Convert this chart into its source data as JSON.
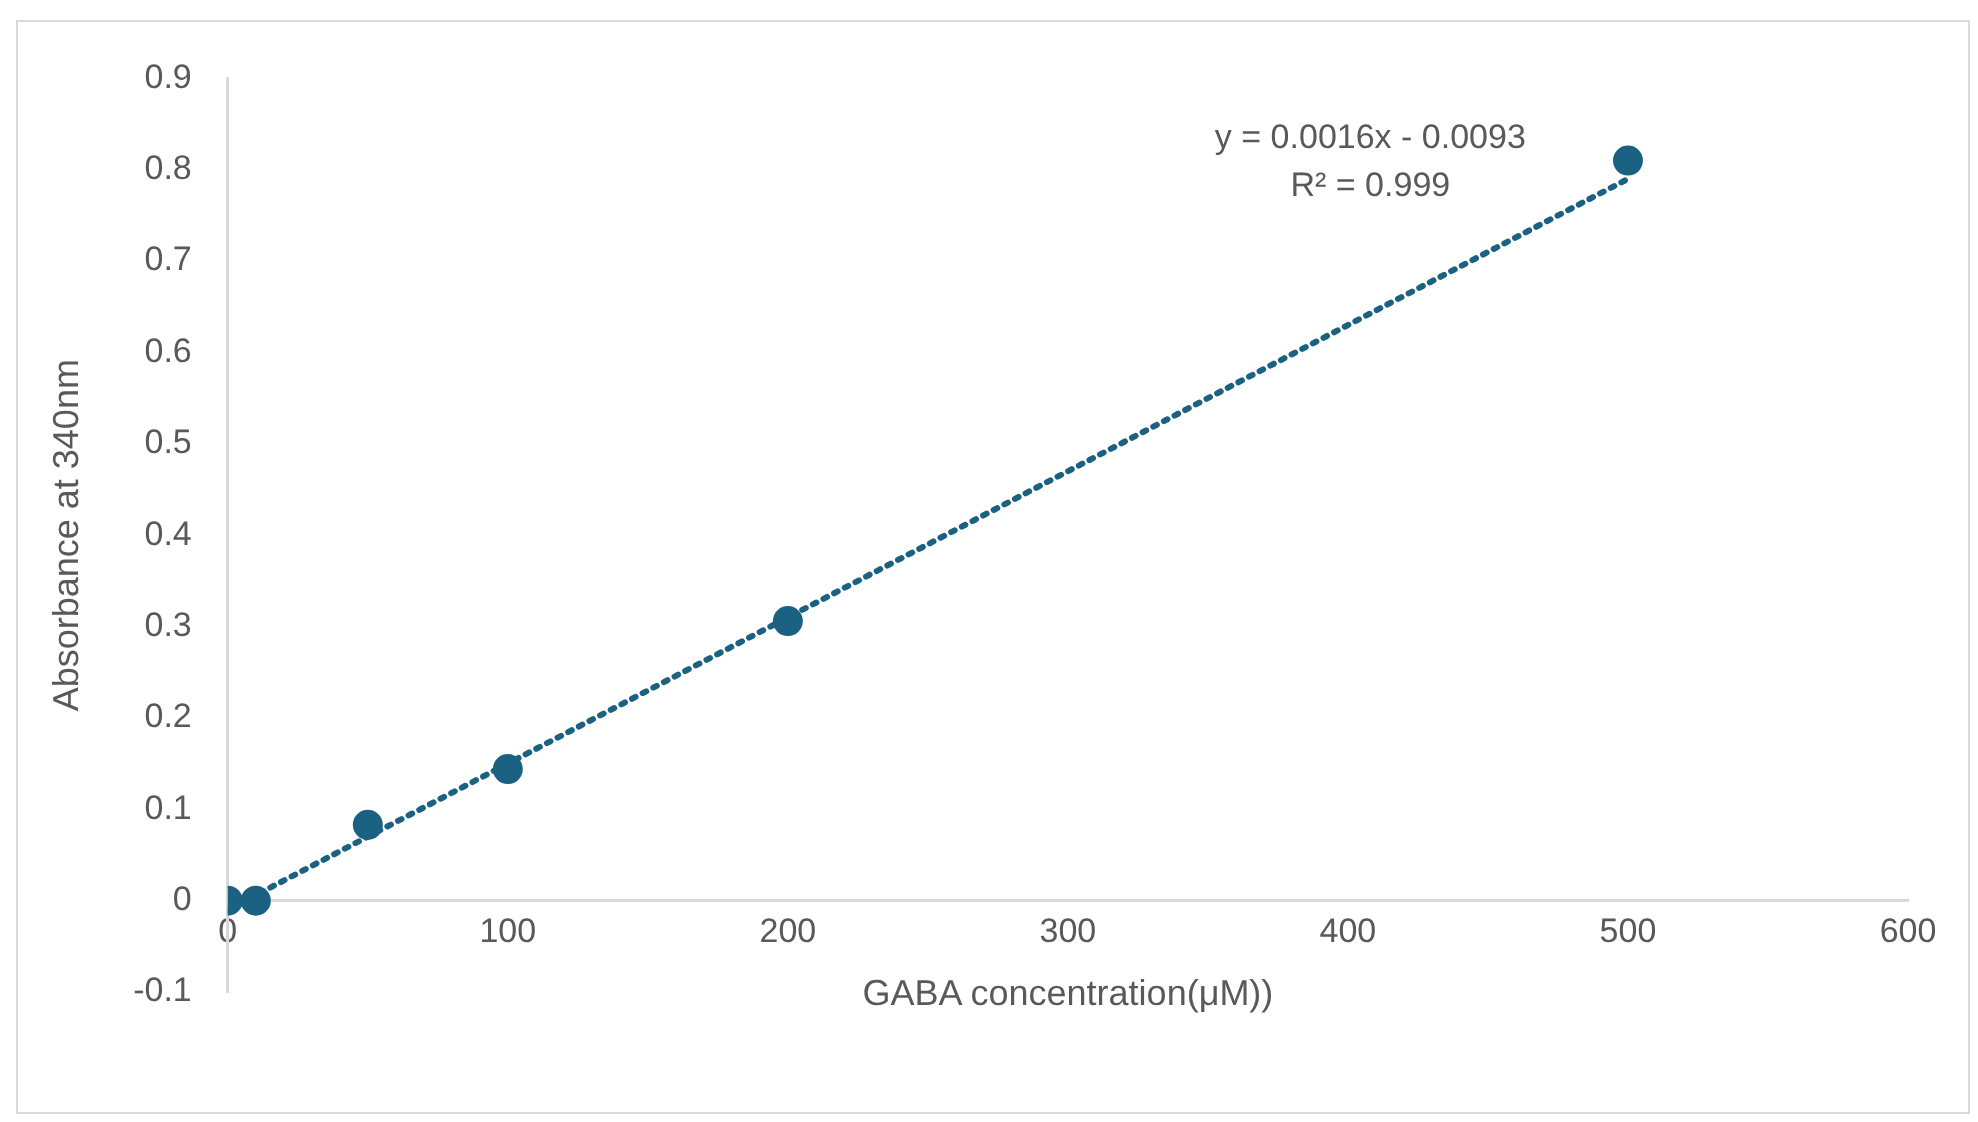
{
  "chart_data": {
    "type": "scatter",
    "xlabel": "GABA concentration(μM))",
    "ylabel": "Absorbance at 340nm",
    "xlim": [
      0,
      600
    ],
    "xticks": [
      0,
      100,
      200,
      300,
      400,
      500,
      600
    ],
    "ylim": [
      -0.1,
      0.9
    ],
    "yticks": [
      -0.1,
      0,
      0.1,
      0.2,
      0.3,
      0.4,
      0.5,
      0.6,
      0.7,
      0.8,
      0.9
    ],
    "grid": false,
    "legend": false,
    "marker": "circle",
    "series": [
      {
        "color": "#1b6182",
        "x": [
          0,
          10,
          50,
          100,
          200,
          500
        ],
        "values": [
          0,
          0,
          0.083,
          0.144,
          0.306,
          0.81
        ]
      },
      {
        "type": "line",
        "color": "#1b6182",
        "line_style": "dotted",
        "marker": "none",
        "x": [
          0,
          500
        ],
        "values": [
          -0.01,
          0.79
        ]
      }
    ],
    "annotations": [
      "y = 0.0016x - 0.0093",
      "R² = 0.999"
    ]
  }
}
